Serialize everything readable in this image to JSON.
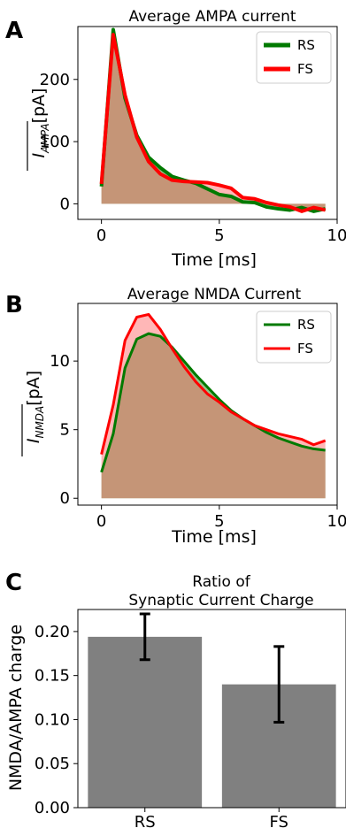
{
  "chart_data": [
    {
      "panel": "A",
      "type": "area",
      "title": "Average AMPA current",
      "xlabel": "Time [ms]",
      "ylabel": "I_AMPA [pA]",
      "ylabel_main": "I",
      "ylabel_sub": "AMPA",
      "ylabel_unit": "[pA]",
      "xlim": [
        -1,
        10
      ],
      "ylim": [
        -25,
        285
      ],
      "xticks": [
        0,
        5,
        10
      ],
      "yticks": [
        0,
        100,
        200
      ],
      "legend_position": "upper right",
      "series": [
        {
          "name": "RS",
          "color": "#007a00",
          "fill": "#3f8f2a",
          "x": [
            0,
            0.5,
            1,
            1.5,
            2,
            2.5,
            3,
            3.5,
            4,
            4.5,
            5,
            5.5,
            6,
            6.5,
            7,
            7.5,
            8,
            8.5,
            9,
            9.5
          ],
          "y": [
            28,
            280,
            170,
            110,
            75,
            58,
            44,
            38,
            33,
            24,
            15,
            12,
            3,
            2,
            -5,
            -8,
            -10,
            -6,
            -12,
            -8
          ]
        },
        {
          "name": "FS",
          "color": "#ff0000",
          "fill": "#ff6060",
          "x": [
            0,
            0.5,
            1,
            1.5,
            2,
            2.5,
            3,
            3.5,
            4,
            4.5,
            5,
            5.5,
            6,
            6.5,
            7,
            7.5,
            8,
            8.5,
            9,
            9.5
          ],
          "y": [
            32,
            272,
            175,
            107,
            68,
            48,
            38,
            36,
            35,
            34,
            30,
            25,
            10,
            8,
            2,
            -2,
            -5,
            -12,
            -6,
            -10
          ]
        }
      ]
    },
    {
      "panel": "B",
      "type": "area",
      "title": "Average NMDA Current",
      "xlabel": "Time [ms]",
      "ylabel": "I_NMDA [pA]",
      "ylabel_main": "I",
      "ylabel_sub": "NMDA",
      "ylabel_unit": "[pA]",
      "xlim": [
        -1,
        10
      ],
      "ylim": [
        -0.5,
        14.2
      ],
      "xticks": [
        0,
        5,
        10
      ],
      "yticks": [
        0,
        5,
        10
      ],
      "legend_position": "upper right",
      "series": [
        {
          "name": "RS",
          "color": "#007a00",
          "fill": "#3f8f2a",
          "x": [
            0,
            0.5,
            1,
            1.5,
            2,
            2.5,
            3,
            3.5,
            4,
            4.5,
            5,
            5.5,
            6,
            6.5,
            7,
            7.5,
            8,
            8.5,
            9,
            9.5
          ],
          "y": [
            1.9,
            4.7,
            9.5,
            11.6,
            12.0,
            11.8,
            11.0,
            10.0,
            9.0,
            8.1,
            7.2,
            6.4,
            5.8,
            5.3,
            4.8,
            4.4,
            4.1,
            3.8,
            3.6,
            3.5
          ]
        },
        {
          "name": "FS",
          "color": "#ff0000",
          "fill": "#ff6060",
          "x": [
            0,
            0.5,
            1,
            1.5,
            2,
            2.5,
            3,
            3.5,
            4,
            4.5,
            5,
            5.5,
            6,
            6.5,
            7,
            7.5,
            8,
            8.5,
            9,
            9.5
          ],
          "y": [
            3.2,
            6.8,
            11.5,
            13.2,
            13.4,
            12.3,
            10.9,
            9.6,
            8.5,
            7.6,
            7.0,
            6.3,
            5.8,
            5.3,
            5.0,
            4.7,
            4.5,
            4.3,
            3.9,
            4.2
          ]
        }
      ]
    },
    {
      "panel": "C",
      "type": "bar",
      "title_line1": "Ratio of",
      "title_line2": "Synaptic Current Charge",
      "ylabel": "NMDA/AMPA charge",
      "ylim": [
        0,
        0.225
      ],
      "yticks": [
        "0.00",
        "0.05",
        "0.10",
        "0.15",
        "0.20"
      ],
      "categories": [
        "RS",
        "FS"
      ],
      "values": [
        0.194,
        0.14
      ],
      "errors": [
        0.026,
        0.043
      ],
      "bar_color": "#808080"
    }
  ]
}
